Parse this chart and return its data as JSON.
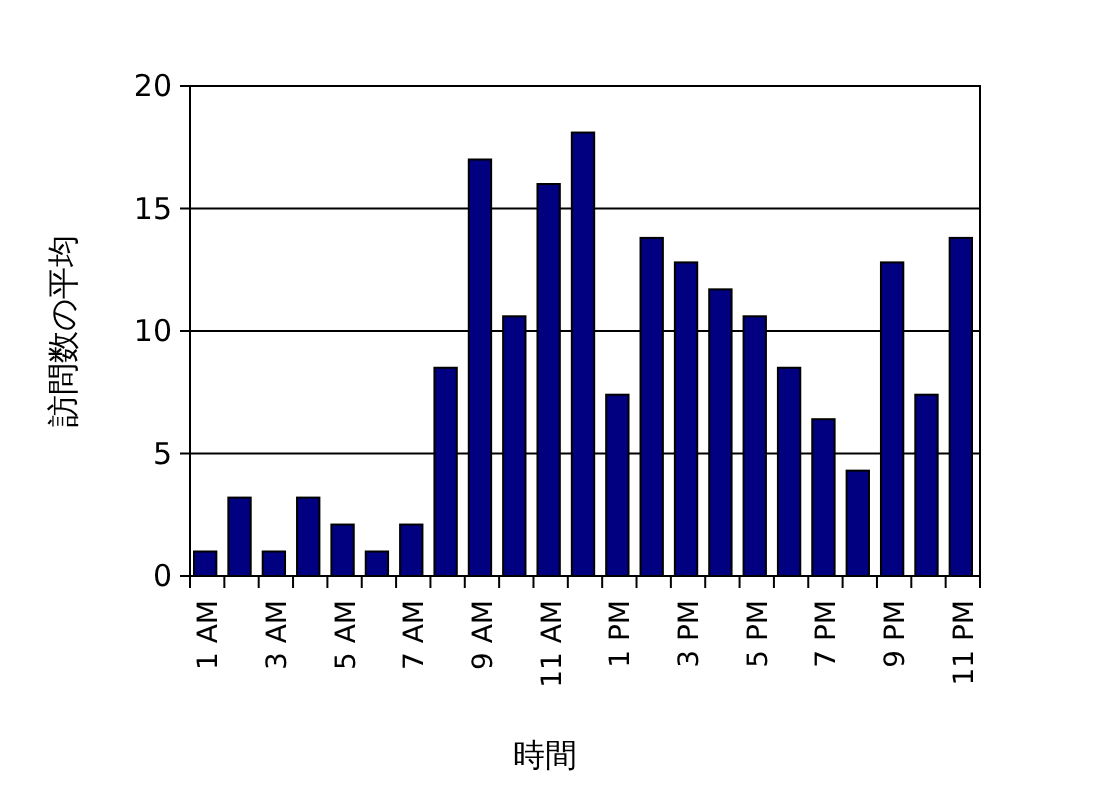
{
  "chart_data": {
    "type": "bar",
    "xlabel": "時間",
    "ylabel": "訪問数の平均",
    "categories": [
      "1 AM",
      null,
      "3 AM",
      null,
      "5 AM",
      null,
      "7 AM",
      null,
      "9 AM",
      null,
      "11 AM",
      null,
      "1 PM",
      null,
      "3 PM",
      null,
      "5 PM",
      null,
      "7 PM",
      null,
      "9 PM",
      null,
      "11 PM"
    ],
    "values": [
      1.0,
      3.2,
      1.0,
      3.2,
      2.1,
      1.0,
      2.1,
      8.5,
      17.0,
      10.6,
      16.0,
      18.1,
      7.4,
      13.8,
      12.8,
      11.7,
      10.6,
      8.5,
      6.4,
      4.3,
      12.8,
      7.4,
      13.8
    ],
    "color": "#000080",
    "ylim": [
      0,
      20
    ],
    "yticks": [
      0,
      5,
      10,
      15,
      20
    ],
    "grid": "y"
  }
}
